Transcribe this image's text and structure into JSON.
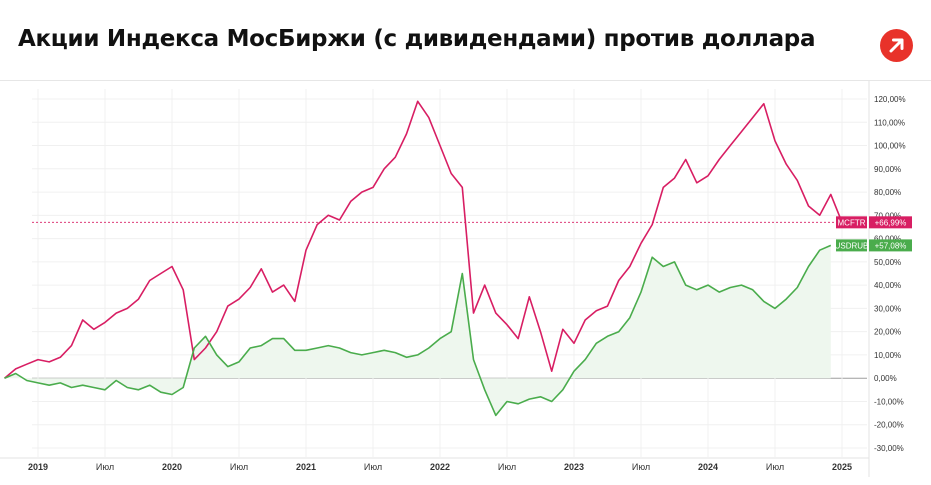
{
  "title": "Акции Индекса МосБиржи (с дивидендами) против доллара",
  "logo_icon": "arrow-up-right-icon",
  "colors": {
    "mcftr": "#d81e63",
    "usdrub": "#4aac4c",
    "logo": "#e8322a",
    "area_fill": "#eef7ee"
  },
  "chart_data": {
    "type": "line",
    "title": "Акции Индекса МосБиржи (с дивидендами) против доллара",
    "y_unit": "%",
    "ylim": [
      -32,
      122
    ],
    "y_ticks": [
      "120,00%",
      "110,00%",
      "100,00%",
      "90,00%",
      "80,00%",
      "70,00%",
      "60,00%",
      "50,00%",
      "40,00%",
      "30,00%",
      "20,00%",
      "10,00%",
      "0,00%",
      "-10,00%",
      "-20,00%",
      "-30,00%"
    ],
    "y_tick_values": [
      120,
      110,
      100,
      90,
      80,
      70,
      60,
      50,
      40,
      30,
      20,
      10,
      0,
      -10,
      -20,
      -30
    ],
    "x_ticks": [
      {
        "label": "2019",
        "x": "2019-01",
        "year": true
      },
      {
        "label": "Июл",
        "x": "2019-07",
        "year": false
      },
      {
        "label": "2020",
        "x": "2020-01",
        "year": true
      },
      {
        "label": "Июл",
        "x": "2020-07",
        "year": false
      },
      {
        "label": "2021",
        "x": "2021-01",
        "year": true
      },
      {
        "label": "Июл",
        "x": "2021-07",
        "year": false
      },
      {
        "label": "2022",
        "x": "2022-01",
        "year": true
      },
      {
        "label": "Июл",
        "x": "2022-07",
        "year": false
      },
      {
        "label": "2023",
        "x": "2023-01",
        "year": true
      },
      {
        "label": "Июл",
        "x": "2023-07",
        "year": false
      },
      {
        "label": "2024",
        "x": "2024-01",
        "year": true
      },
      {
        "label": "Июл",
        "x": "2024-07",
        "year": false
      },
      {
        "label": "2025",
        "x": "2025-01",
        "year": true
      }
    ],
    "grid": true,
    "legend": "badges at right end of series",
    "series": [
      {
        "name": "MCFTR",
        "badge": "MCFTR",
        "last_label": "+66,99%",
        "last_value": 66.99,
        "color": "#d81e63",
        "reference_line": true,
        "points": [
          [
            "2018-10",
            0
          ],
          [
            "2018-11",
            4
          ],
          [
            "2018-12",
            6
          ],
          [
            "2019-01",
            8
          ],
          [
            "2019-02",
            7
          ],
          [
            "2019-03",
            9
          ],
          [
            "2019-04",
            14
          ],
          [
            "2019-05",
            25
          ],
          [
            "2019-06",
            21
          ],
          [
            "2019-07",
            24
          ],
          [
            "2019-08",
            28
          ],
          [
            "2019-09",
            30
          ],
          [
            "2019-10",
            34
          ],
          [
            "2019-11",
            42
          ],
          [
            "2019-12",
            45
          ],
          [
            "2020-01",
            48
          ],
          [
            "2020-02",
            38
          ],
          [
            "2020-03",
            8
          ],
          [
            "2020-04",
            13
          ],
          [
            "2020-05",
            20
          ],
          [
            "2020-06",
            31
          ],
          [
            "2020-07",
            34
          ],
          [
            "2020-08",
            39
          ],
          [
            "2020-09",
            47
          ],
          [
            "2020-10",
            37
          ],
          [
            "2020-11",
            40
          ],
          [
            "2020-12",
            33
          ],
          [
            "2021-01",
            55
          ],
          [
            "2021-02",
            66
          ],
          [
            "2021-03",
            70
          ],
          [
            "2021-04",
            68
          ],
          [
            "2021-05",
            76
          ],
          [
            "2021-06",
            80
          ],
          [
            "2021-07",
            82
          ],
          [
            "2021-08",
            90
          ],
          [
            "2021-09",
            95
          ],
          [
            "2021-10",
            105
          ],
          [
            "2021-11",
            119
          ],
          [
            "2021-12",
            112
          ],
          [
            "2022-01",
            100
          ],
          [
            "2022-02",
            88
          ],
          [
            "2022-03",
            82
          ],
          [
            "2022-04",
            28
          ],
          [
            "2022-05",
            40
          ],
          [
            "2022-06",
            28
          ],
          [
            "2022-07",
            23
          ],
          [
            "2022-08",
            17
          ],
          [
            "2022-09",
            35
          ],
          [
            "2022-10",
            20
          ],
          [
            "2022-11",
            3
          ],
          [
            "2022-12",
            21
          ],
          [
            "2023-01",
            15
          ],
          [
            "2023-02",
            25
          ],
          [
            "2023-03",
            29
          ],
          [
            "2023-04",
            31
          ],
          [
            "2023-05",
            42
          ],
          [
            "2023-06",
            48
          ],
          [
            "2023-07",
            58
          ],
          [
            "2023-08",
            66
          ],
          [
            "2023-09",
            82
          ],
          [
            "2023-10",
            86
          ],
          [
            "2023-11",
            94
          ],
          [
            "2023-12",
            84
          ],
          [
            "2024-01",
            87
          ],
          [
            "2024-02",
            94
          ],
          [
            "2024-03",
            100
          ],
          [
            "2024-04",
            106
          ],
          [
            "2024-05",
            112
          ],
          [
            "2024-06",
            118
          ],
          [
            "2024-07",
            102
          ],
          [
            "2024-08",
            92
          ],
          [
            "2024-09",
            85
          ],
          [
            "2024-10",
            74
          ],
          [
            "2024-11",
            70
          ],
          [
            "2024-12",
            79
          ],
          [
            "2025-01",
            67
          ]
        ]
      },
      {
        "name": "USDRUB",
        "badge": "USDRUB",
        "last_label": "+57,08%",
        "last_value": 57.08,
        "color": "#4aac4c",
        "area": true,
        "points": [
          [
            "2018-10",
            0
          ],
          [
            "2018-11",
            2
          ],
          [
            "2018-12",
            -1
          ],
          [
            "2019-01",
            -2
          ],
          [
            "2019-02",
            -3
          ],
          [
            "2019-03",
            -2
          ],
          [
            "2019-04",
            -4
          ],
          [
            "2019-05",
            -3
          ],
          [
            "2019-06",
            -4
          ],
          [
            "2019-07",
            -5
          ],
          [
            "2019-08",
            -1
          ],
          [
            "2019-09",
            -4
          ],
          [
            "2019-10",
            -5
          ],
          [
            "2019-11",
            -3
          ],
          [
            "2019-12",
            -6
          ],
          [
            "2020-01",
            -7
          ],
          [
            "2020-02",
            -4
          ],
          [
            "2020-03",
            13
          ],
          [
            "2020-04",
            18
          ],
          [
            "2020-05",
            10
          ],
          [
            "2020-06",
            5
          ],
          [
            "2020-07",
            7
          ],
          [
            "2020-08",
            13
          ],
          [
            "2020-09",
            14
          ],
          [
            "2020-10",
            17
          ],
          [
            "2020-11",
            17
          ],
          [
            "2020-12",
            12
          ],
          [
            "2021-01",
            12
          ],
          [
            "2021-02",
            13
          ],
          [
            "2021-03",
            14
          ],
          [
            "2021-04",
            13
          ],
          [
            "2021-05",
            11
          ],
          [
            "2021-06",
            10
          ],
          [
            "2021-07",
            11
          ],
          [
            "2021-08",
            12
          ],
          [
            "2021-09",
            11
          ],
          [
            "2021-10",
            9
          ],
          [
            "2021-11",
            10
          ],
          [
            "2021-12",
            13
          ],
          [
            "2022-01",
            17
          ],
          [
            "2022-02",
            20
          ],
          [
            "2022-03",
            45
          ],
          [
            "2022-04",
            8
          ],
          [
            "2022-05",
            -5
          ],
          [
            "2022-06",
            -16
          ],
          [
            "2022-07",
            -10
          ],
          [
            "2022-08",
            -11
          ],
          [
            "2022-09",
            -9
          ],
          [
            "2022-10",
            -8
          ],
          [
            "2022-11",
            -10
          ],
          [
            "2022-12",
            -5
          ],
          [
            "2023-01",
            3
          ],
          [
            "2023-02",
            8
          ],
          [
            "2023-03",
            15
          ],
          [
            "2023-04",
            18
          ],
          [
            "2023-05",
            20
          ],
          [
            "2023-06",
            26
          ],
          [
            "2023-07",
            37
          ],
          [
            "2023-08",
            52
          ],
          [
            "2023-09",
            48
          ],
          [
            "2023-10",
            50
          ],
          [
            "2023-11",
            40
          ],
          [
            "2023-12",
            38
          ],
          [
            "2024-01",
            40
          ],
          [
            "2024-02",
            37
          ],
          [
            "2024-03",
            39
          ],
          [
            "2024-04",
            40
          ],
          [
            "2024-05",
            38
          ],
          [
            "2024-06",
            33
          ],
          [
            "2024-07",
            30
          ],
          [
            "2024-08",
            34
          ],
          [
            "2024-09",
            39
          ],
          [
            "2024-10",
            48
          ],
          [
            "2024-11",
            55
          ],
          [
            "2024-12",
            57.08
          ]
        ]
      }
    ]
  }
}
